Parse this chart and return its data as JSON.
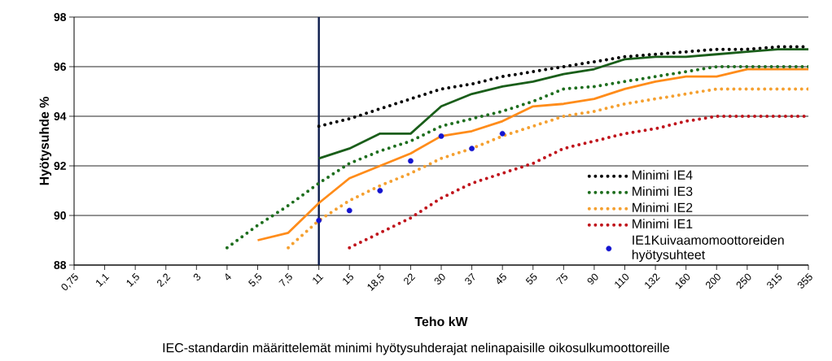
{
  "chart_data": {
    "type": "line",
    "xlabel": "Teho kW",
    "ylabel": "Hyötysuhde %",
    "annotations": [
      "IEC-standardin määrittelemät minimi hyötysuhderajat nelinapaisille oikosulkumoottoreille"
    ],
    "categories": [
      "0,75",
      "1,1",
      "1,5",
      "2,2",
      "3",
      "4",
      "5,5",
      "7,5",
      "11",
      "15",
      "18,5",
      "22",
      "30",
      "37",
      "45",
      "55",
      "75",
      "90",
      "110",
      "132",
      "160",
      "200",
      "250",
      "315",
      "355"
    ],
    "ylim": [
      88,
      98
    ],
    "yticks": [
      88,
      90,
      92,
      94,
      96,
      98
    ],
    "grid": "y",
    "legend": "bottom right",
    "ref_lines": [
      {
        "axis": "x",
        "value": "11",
        "color": "#0a1a4a"
      }
    ],
    "series": [
      {
        "color": "#1a5e1a",
        "line_style": "solid",
        "values": [
          null,
          null,
          null,
          null,
          null,
          null,
          null,
          null,
          92.3,
          92.7,
          93.3,
          93.3,
          94.4,
          94.9,
          95.2,
          95.4,
          95.7,
          95.9,
          96.3,
          96.4,
          96.4,
          96.5,
          96.6,
          96.7,
          96.7
        ]
      },
      {
        "color": "#ff8c1a",
        "line_style": "solid",
        "values": [
          null,
          null,
          null,
          null,
          null,
          null,
          89.0,
          89.3,
          90.5,
          91.5,
          92.0,
          92.5,
          93.2,
          93.4,
          93.8,
          94.4,
          94.5,
          94.7,
          95.1,
          95.4,
          95.6,
          95.6,
          95.9,
          95.9,
          95.9
        ]
      },
      {
        "name": "Minimi IE4",
        "color": "#000000",
        "line_style": "dotted",
        "values": [
          null,
          null,
          null,
          null,
          null,
          null,
          null,
          null,
          93.6,
          93.9,
          94.3,
          94.7,
          95.1,
          95.3,
          95.6,
          95.8,
          96.0,
          96.2,
          96.4,
          96.5,
          96.6,
          96.7,
          96.7,
          96.8,
          96.8
        ]
      },
      {
        "name": "Minimi IE3",
        "color": "#1e6e1e",
        "line_style": "dotted",
        "values": [
          null,
          null,
          null,
          null,
          null,
          88.7,
          89.6,
          90.4,
          91.3,
          92.1,
          92.6,
          93.0,
          93.6,
          93.9,
          94.2,
          94.6,
          95.1,
          95.2,
          95.4,
          95.6,
          95.8,
          96.0,
          96.0,
          96.0,
          96.0
        ]
      },
      {
        "name": "Minimi IE2",
        "color": "#f5a030",
        "line_style": "dotted",
        "values": [
          null,
          null,
          null,
          null,
          null,
          null,
          null,
          88.7,
          89.8,
          90.6,
          91.2,
          91.7,
          92.3,
          92.7,
          93.2,
          93.6,
          94.0,
          94.2,
          94.5,
          94.7,
          94.9,
          95.1,
          95.1,
          95.1,
          95.1
        ]
      },
      {
        "name": "Minimi IE1",
        "color": "#c0141c",
        "line_style": "dotted",
        "values": [
          null,
          null,
          null,
          null,
          null,
          null,
          null,
          null,
          null,
          88.7,
          89.3,
          89.9,
          90.7,
          91.3,
          91.7,
          92.1,
          92.7,
          93.0,
          93.3,
          93.5,
          93.8,
          94.0,
          94.0,
          94.0,
          94.0
        ]
      },
      {
        "name": "IE1Kuivaamomoottoreiden hyötysuhteet",
        "type": "scatter",
        "marker": "circle",
        "color": "#1414d0",
        "values": [
          null,
          null,
          null,
          null,
          null,
          null,
          null,
          null,
          89.8,
          90.2,
          91.0,
          92.2,
          93.2,
          92.7,
          93.3,
          null,
          null,
          null,
          null,
          null,
          null,
          null,
          null,
          null,
          null
        ]
      }
    ]
  }
}
